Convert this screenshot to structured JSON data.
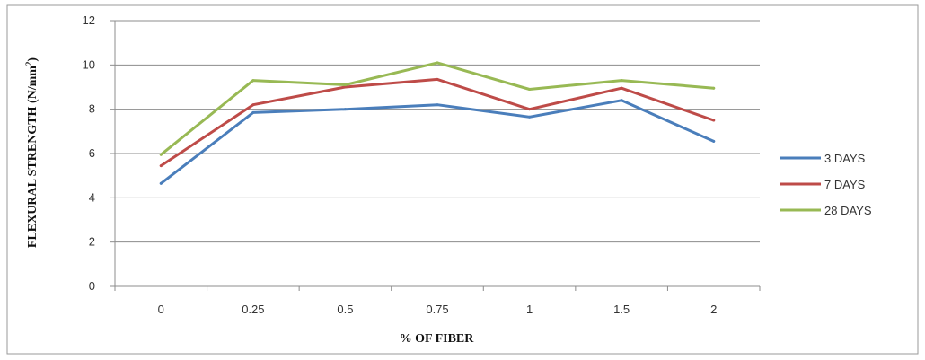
{
  "chart_data": {
    "type": "line",
    "categories": [
      "0",
      "0.25",
      "0.5",
      "0.75",
      "1",
      "1.5",
      "2"
    ],
    "ylabel": "FLEXURAL STRENGTH (N/mm²)",
    "ylabel_main": "FLEXURAL STRENGTH (N/mm",
    "ylabel_sup": "2",
    "ylabel_end": ")",
    "xlabel": "% OF FIBER",
    "ylim": [
      0,
      12
    ],
    "yticks": [
      0,
      2,
      4,
      6,
      8,
      10,
      12
    ],
    "grid": true,
    "legend_position": "right",
    "series": [
      {
        "name": "3 DAYS",
        "color": "#4a7ebb",
        "values": [
          4.65,
          7.85,
          8.0,
          8.2,
          7.65,
          8.4,
          6.55
        ]
      },
      {
        "name": "7 DAYS",
        "color": "#be4b48",
        "values": [
          5.45,
          8.2,
          9.0,
          9.35,
          8.0,
          8.95,
          7.5
        ]
      },
      {
        "name": "28 DAYS",
        "color": "#98b954",
        "values": [
          5.95,
          9.3,
          9.1,
          10.1,
          8.9,
          9.3,
          8.95
        ]
      }
    ]
  }
}
